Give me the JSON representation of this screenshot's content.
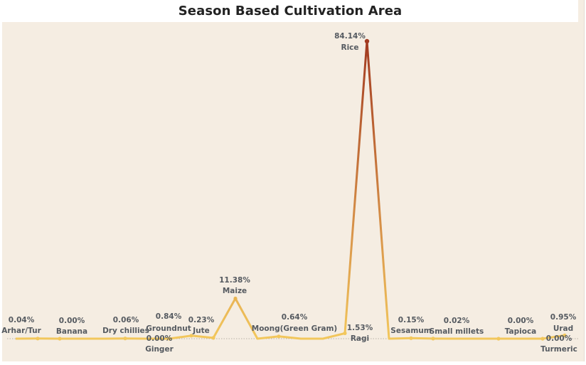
{
  "chart_data": {
    "type": "line",
    "title": "Season Based Cultivation Area",
    "xlabel": "",
    "ylabel": "",
    "ylim": [
      0,
      90
    ],
    "grid": false,
    "categories": [
      "Arhar/Tur",
      "Banana",
      "Dry chillies",
      "Ginger",
      "Groundnut",
      "Jute",
      "Maize",
      "Moong(Green Gram)",
      "Ragi",
      "Rice",
      "Sesamum",
      "Small millets",
      "Tapioca",
      "Turmeric",
      "Urad"
    ],
    "labels": [
      "0.04%",
      "0.00%",
      "0.06%",
      "0.00%",
      "0.84%",
      "0.23%",
      "11.38%",
      "0.64%",
      "1.53%",
      "84.14%",
      "0.15%",
      "0.02%",
      "0.00%",
      "0.00%",
      "0.95%"
    ],
    "values": [
      0.04,
      0.0,
      0.06,
      0.0,
      0.84,
      0.23,
      11.38,
      0.64,
      1.53,
      84.14,
      0.15,
      0.02,
      0.0,
      0.0,
      0.95
    ],
    "colors": {
      "low": "#f2c75c",
      "high": "#a23a20",
      "axis": "#b7b1a7"
    }
  }
}
